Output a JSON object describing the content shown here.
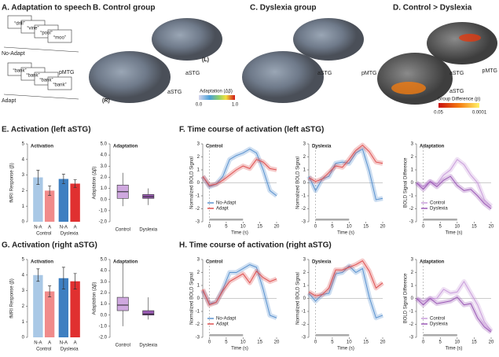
{
  "figure": {
    "a": {
      "title": "A. Adaptation to speech",
      "no_adapt_words": [
        "“drill”",
        "“vine”",
        "“pool”",
        "“moo”"
      ],
      "no_adapt_label": "No-Adapt",
      "adapt_words": [
        "“bank”",
        "“bank”",
        "“bank”",
        "“bank”"
      ],
      "adapt_label": "Adapt"
    },
    "b": {
      "title": "B. Control group",
      "labels": [
        "pMTG",
        "(R)",
        "aSTG",
        "aSTG",
        "(L)"
      ],
      "colorbar_title": "Adaptation (Δβ)",
      "colorbar_ticks": [
        "0.0",
        "1.0"
      ]
    },
    "c": {
      "title": "C. Dyslexia group",
      "labels": [
        "aSTG"
      ]
    },
    "d": {
      "title": "D. Control > Dyslexia",
      "labels": [
        "pMTG",
        "aSTG",
        "aSTG",
        "pMTG"
      ],
      "colorbar_title": "Group Difference (p)",
      "colorbar_ticks": [
        "0.05",
        "0.0001"
      ]
    },
    "e_title": "E. Activation (left aSTG)",
    "f_title": "F. Time course of activation (left aSTG)",
    "g_title": "G. Activation (right aSTG)",
    "h_title": "H. Time course of activation (right aSTG)"
  },
  "chart_data": [
    {
      "type": "bar",
      "title": "Activation",
      "y_label": "fMRI Response (β)",
      "categories": [
        "N-A",
        "A",
        "N-A",
        "A"
      ],
      "groups": [
        "Control",
        "Dyslexia"
      ],
      "values": [
        2.85,
        2.0,
        2.75,
        2.45
      ],
      "errors": [
        0.45,
        0.3,
        0.3,
        0.25
      ],
      "colors": [
        "#a9c8e6",
        "#f08b8b",
        "#3e7fc1",
        "#e03030"
      ],
      "ylim": [
        0,
        5
      ],
      "yticks": [
        0,
        1,
        2,
        3,
        4,
        5
      ]
    },
    {
      "type": "box",
      "title": "Adaptation",
      "y_label": "Adaptation (Δβ)",
      "categories": [
        "Control",
        "Dyslexia"
      ],
      "whisker_low": [
        -0.6,
        -0.5
      ],
      "q1": [
        0.1,
        0.1
      ],
      "median": [
        0.7,
        0.25
      ],
      "q3": [
        1.3,
        0.45
      ],
      "whisker_high": [
        2.4,
        1.0
      ],
      "colors": [
        "#cfa8df",
        "#9b5bb5"
      ],
      "ylim": [
        -2,
        5
      ],
      "yticks": [
        {
          "value": -2,
          "label": "-2.0"
        },
        {
          "value": -1,
          "label": "-1.0"
        },
        {
          "value": 0,
          "label": "0.0"
        },
        {
          "value": 1,
          "label": "1.0"
        },
        {
          "value": 2,
          "label": "2.0"
        },
        {
          "value": 3,
          "label": "3.0"
        },
        {
          "value": 4,
          "label": "4.0"
        },
        {
          "value": 5,
          "label": "5.0"
        }
      ]
    },
    {
      "type": "line",
      "title": "Control",
      "y_label": "Normalized BOLD Signal",
      "x_label": "Time (s)",
      "x": [
        -2,
        0,
        2,
        4,
        6,
        8,
        10,
        12,
        14,
        16,
        18,
        20
      ],
      "series": [
        {
          "name": "No-Adapt",
          "color": "#5b93cf",
          "values": [
            0.5,
            -0.3,
            -0.1,
            0.5,
            1.8,
            2.1,
            2.3,
            2.6,
            2.3,
            1.0,
            -0.6,
            -1.0
          ]
        },
        {
          "name": "Adapt",
          "color": "#df5050",
          "values": [
            0.5,
            -0.2,
            -0.1,
            0.2,
            0.6,
            1.0,
            1.3,
            1.1,
            1.8,
            1.6,
            1.1,
            1.0
          ]
        }
      ],
      "xlim": [
        -2,
        20
      ],
      "ylim": [
        -3,
        3
      ],
      "xticks": [
        0,
        5,
        10,
        15,
        20
      ],
      "yticks": [
        -3,
        -2,
        -1,
        0,
        1,
        2,
        3
      ],
      "legend": "lower left"
    },
    {
      "type": "line",
      "title": "Dyslexia",
      "y_label": "Normalized BOLD Signal",
      "x_label": "Time (s)",
      "x": [
        -2,
        0,
        2,
        4,
        6,
        8,
        10,
        12,
        14,
        16,
        18,
        20
      ],
      "series": [
        {
          "name": "No-Adapt",
          "color": "#5b93cf",
          "values": [
            0.5,
            -0.6,
            0.3,
            0.5,
            1.5,
            1.6,
            1.5,
            2.3,
            2.6,
            0.9,
            -1.3,
            -1.2
          ]
        },
        {
          "name": "Adapt",
          "color": "#df5050",
          "values": [
            0.4,
            0.1,
            0.3,
            0.8,
            1.3,
            1.2,
            1.8,
            2.5,
            2.9,
            2.4,
            1.6,
            1.5
          ]
        }
      ],
      "xlim": [
        -2,
        20
      ],
      "ylim": [
        -3,
        3
      ],
      "xticks": [
        0,
        5,
        10,
        15,
        20
      ],
      "yticks": [
        -3,
        -2,
        -1,
        0,
        1,
        2,
        3
      ]
    },
    {
      "type": "line",
      "title": "Adaptation",
      "y_label": "BOLD Signal Difference",
      "x_label": "Time (s)",
      "x": [
        -2,
        0,
        2,
        4,
        6,
        8,
        10,
        12,
        14,
        16,
        18,
        20
      ],
      "series": [
        {
          "name": "Control",
          "color": "#c99ddb",
          "values": [
            0,
            -0.3,
            0.1,
            -0.1,
            0.6,
            1.0,
            1.8,
            1.4,
            0.6,
            0,
            -1.3,
            -1.8
          ]
        },
        {
          "name": "Dyslexia",
          "color": "#9b59b6",
          "values": [
            0,
            -0.5,
            0.1,
            -0.3,
            0.2,
            0.5,
            -0.2,
            -0.6,
            -0.5,
            -1.0,
            -1.6,
            -2.0
          ]
        }
      ],
      "xlim": [
        -2,
        20
      ],
      "ylim": [
        -3,
        3
      ],
      "xticks": [
        0,
        5,
        10,
        15,
        20
      ],
      "yticks": [
        -3,
        -2,
        -1,
        0,
        1,
        2,
        3
      ],
      "legend": "lower left"
    },
    {
      "type": "bar",
      "title": "Activation",
      "y_label": "fMRI Response (β)",
      "categories": [
        "N-A",
        "A",
        "N-A",
        "A"
      ],
      "groups": [
        "Control",
        "Dyslexia"
      ],
      "values": [
        4.0,
        2.95,
        3.8,
        3.6
      ],
      "errors": [
        0.4,
        0.35,
        0.7,
        0.5
      ],
      "colors": [
        "#a9c8e6",
        "#f08b8b",
        "#3e7fc1",
        "#e03030"
      ],
      "ylim": [
        0,
        5
      ],
      "yticks": [
        0,
        1,
        2,
        3,
        4,
        5
      ]
    },
    {
      "type": "box",
      "title": "Adaptation",
      "y_label": "Adaptation (Δβ)",
      "categories": [
        "Control",
        "Dyslexia"
      ],
      "whisker_low": [
        -1.0,
        -0.4
      ],
      "q1": [
        0.4,
        0.0
      ],
      "median": [
        0.9,
        0.1
      ],
      "q3": [
        1.6,
        0.4
      ],
      "whisker_high": [
        4.7,
        1.6
      ],
      "colors": [
        "#cfa8df",
        "#9b5bb5"
      ],
      "ylim": [
        -2,
        5
      ],
      "yticks": [
        {
          "value": -2,
          "label": "-2.0"
        },
        {
          "value": -1,
          "label": "-1.0"
        },
        {
          "value": 0,
          "label": "0.0"
        },
        {
          "value": 1,
          "label": "1.0"
        },
        {
          "value": 2,
          "label": "2.0"
        },
        {
          "value": 3,
          "label": "3.0"
        },
        {
          "value": 4,
          "label": "4.0"
        },
        {
          "value": 5,
          "label": "5.0"
        }
      ]
    },
    {
      "type": "line",
      "title": "Control",
      "y_label": "Normalized BOLD Signal",
      "x_label": "Time (s)",
      "x": [
        -2,
        0,
        2,
        4,
        6,
        8,
        10,
        12,
        14,
        16,
        18,
        20
      ],
      "series": [
        {
          "name": "No-Adapt",
          "color": "#5b93cf",
          "values": [
            0.6,
            -0.4,
            -0.3,
            0.7,
            2.0,
            2.0,
            2.3,
            2.6,
            2.4,
            0.7,
            -1.3,
            -1.5
          ]
        },
        {
          "name": "Adapt",
          "color": "#df5050",
          "values": [
            0.7,
            -0.5,
            -0.3,
            0.6,
            1.3,
            1.6,
            1.9,
            1.2,
            2.1,
            1.6,
            1.3,
            1.5
          ]
        }
      ],
      "xlim": [
        -2,
        20
      ],
      "ylim": [
        -3,
        3
      ],
      "xticks": [
        0,
        5,
        10,
        15,
        20
      ],
      "yticks": [
        -3,
        -2,
        -1,
        0,
        1,
        2,
        3
      ],
      "legend": "lower left"
    },
    {
      "type": "line",
      "title": "Dyslexia",
      "y_label": "Normalized BOLD Signal",
      "x_label": "Time (s)",
      "x": [
        -2,
        0,
        2,
        4,
        6,
        8,
        10,
        12,
        14,
        16,
        18,
        20
      ],
      "series": [
        {
          "name": "No-Adapt",
          "color": "#5b93cf",
          "values": [
            0.4,
            -0.2,
            0.3,
            0.4,
            1.9,
            2.0,
            2.5,
            2.0,
            2.3,
            0.1,
            -1.5,
            -1.3
          ]
        },
        {
          "name": "Adapt",
          "color": "#df5050",
          "values": [
            0.5,
            0.2,
            0.3,
            0.8,
            2.2,
            2.2,
            2.4,
            2.6,
            2.9,
            2.1,
            0.8,
            1.2
          ]
        }
      ],
      "xlim": [
        -2,
        20
      ],
      "ylim": [
        -3,
        3
      ],
      "xticks": [
        0,
        5,
        10,
        15,
        20
      ],
      "yticks": [
        -3,
        -2,
        -1,
        0,
        1,
        2,
        3
      ]
    },
    {
      "type": "line",
      "title": "Adaptation",
      "y_label": "BOLD Signal Difference",
      "x_label": "Time (s)",
      "x": [
        -2,
        0,
        2,
        4,
        6,
        8,
        10,
        12,
        14,
        16,
        18,
        20
      ],
      "series": [
        {
          "name": "Control",
          "color": "#c99ddb",
          "values": [
            0,
            -0.2,
            0,
            0,
            0.7,
            0.4,
            0.5,
            1.3,
            0.4,
            -0.5,
            -1.8,
            -2.5
          ]
        },
        {
          "name": "Dyslexia",
          "color": "#9b59b6",
          "values": [
            0,
            -0.5,
            0,
            -0.4,
            -0.3,
            -0.2,
            0.1,
            -0.5,
            -0.4,
            -1.5,
            -2.2,
            -2.6
          ]
        }
      ],
      "xlim": [
        -2,
        20
      ],
      "ylim": [
        -3,
        3
      ],
      "xticks": [
        0,
        5,
        10,
        15,
        20
      ],
      "yticks": [
        -3,
        -2,
        -1,
        0,
        1,
        2,
        3
      ],
      "legend": "lower left"
    }
  ]
}
